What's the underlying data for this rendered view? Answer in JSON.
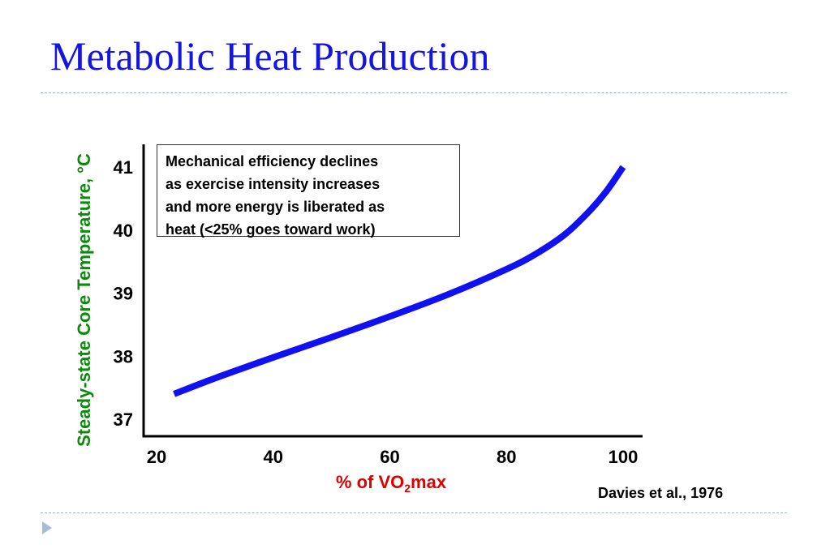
{
  "slide": {
    "title": "Metabolic Heat Production",
    "source": "Davies et al., 1976"
  },
  "chart_data": {
    "type": "line",
    "title": "",
    "xlabel_prefix": "% of VO",
    "xlabel_sub": "2",
    "xlabel_suffix": "max",
    "ylabel": "Steady-state Core Temperature, °C",
    "xlim": [
      20,
      100
    ],
    "ylim": [
      37,
      41.3
    ],
    "x_ticks": [
      20,
      40,
      60,
      80,
      100
    ],
    "y_ticks": [
      37,
      38,
      39,
      40,
      41
    ],
    "grid": false,
    "annotation": [
      "Mechanical efficiency declines",
      "as exercise intensity increases",
      "and more energy is liberated as",
      "heat (<25% goes toward work)"
    ],
    "series": [
      {
        "color": "#1010f0",
        "x": [
          23,
          30,
          40,
          50,
          60,
          70,
          80,
          85,
          90,
          94,
          97,
          100
        ],
        "y": [
          37.4,
          37.65,
          37.98,
          38.3,
          38.63,
          38.98,
          39.38,
          39.62,
          39.93,
          40.28,
          40.6,
          41.0
        ]
      }
    ],
    "colors": {
      "title": "#1515e0",
      "ylabel": "#0b8a0b",
      "xlabel": "#e00000",
      "axis": "#000000"
    }
  }
}
